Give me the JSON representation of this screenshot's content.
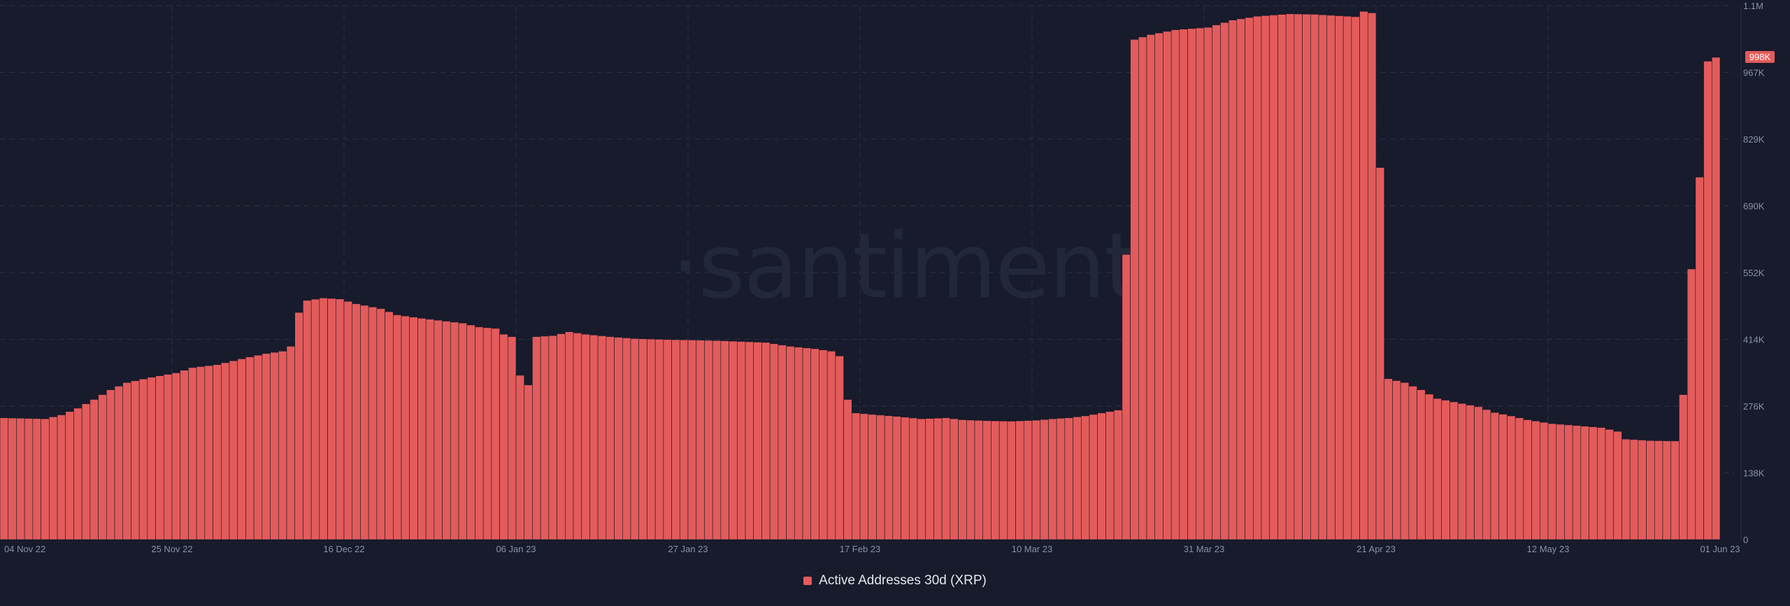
{
  "watermark": "·santiment",
  "legend": {
    "label": "Active Addresses 30d (XRP)"
  },
  "colors": {
    "background": "#171b2b",
    "bar": "#e35b5b",
    "bar_stroke": "#171b2b",
    "grid": "#2a3044",
    "axis_text": "#8b93a7",
    "last_value_badge": "#e35b5b"
  },
  "chart_data": {
    "type": "bar",
    "title": "",
    "series_name": "Active Addresses 30d (XRP)",
    "x_start": "2022-11-04",
    "x_end": "2023-06-01",
    "x_tick_labels": [
      "04 Nov 22",
      "25 Nov 22",
      "16 Dec 22",
      "06 Jan 23",
      "27 Jan 23",
      "17 Feb 23",
      "10 Mar 23",
      "31 Mar 23",
      "21 Apr 23",
      "12 May 23",
      "01 Jun 23"
    ],
    "y_tick_labels": [
      "0",
      "138K",
      "276K",
      "414K",
      "552K",
      "690K",
      "829K",
      "967K",
      "1.1M"
    ],
    "ylim": [
      0,
      1105000
    ],
    "y_axis_position": "right",
    "grid": true,
    "last_value_label": "998K",
    "last_value": 998000,
    "points": [
      [
        "2022-11-04",
        252000
      ],
      [
        "2022-11-09",
        250000
      ],
      [
        "2022-11-11",
        258000
      ],
      [
        "2022-11-13",
        272000
      ],
      [
        "2022-11-15",
        290000
      ],
      [
        "2022-11-17",
        310000
      ],
      [
        "2022-11-19",
        325000
      ],
      [
        "2022-11-22",
        336000
      ],
      [
        "2022-11-25",
        345000
      ],
      [
        "2022-11-27",
        356000
      ],
      [
        "2022-11-30",
        362000
      ],
      [
        "2022-12-02",
        370000
      ],
      [
        "2022-12-04",
        378000
      ],
      [
        "2022-12-06",
        385000
      ],
      [
        "2022-12-08",
        390000
      ],
      [
        "2022-12-09",
        400000
      ],
      [
        "2022-12-10",
        470000
      ],
      [
        "2022-12-11",
        495000
      ],
      [
        "2022-12-13",
        500000
      ],
      [
        "2022-12-15",
        498000
      ],
      [
        "2022-12-17",
        488000
      ],
      [
        "2022-12-20",
        478000
      ],
      [
        "2022-12-22",
        465000
      ],
      [
        "2022-12-25",
        458000
      ],
      [
        "2022-12-28",
        452000
      ],
      [
        "2022-12-30",
        448000
      ],
      [
        "2023-01-01",
        440000
      ],
      [
        "2023-01-03",
        437000
      ],
      [
        "2023-01-04",
        425000
      ],
      [
        "2023-01-05",
        420000
      ],
      [
        "2023-01-06",
        340000
      ],
      [
        "2023-01-07",
        320000
      ],
      [
        "2023-01-08",
        420000
      ],
      [
        "2023-01-10",
        422000
      ],
      [
        "2023-01-12",
        430000
      ],
      [
        "2023-01-14",
        425000
      ],
      [
        "2023-01-17",
        420000
      ],
      [
        "2023-01-20",
        416000
      ],
      [
        "2023-01-24",
        414000
      ],
      [
        "2023-01-27",
        413000
      ],
      [
        "2023-01-30",
        412000
      ],
      [
        "2023-02-02",
        410000
      ],
      [
        "2023-02-05",
        408000
      ],
      [
        "2023-02-08",
        400000
      ],
      [
        "2023-02-11",
        395000
      ],
      [
        "2023-02-13",
        390000
      ],
      [
        "2023-02-14",
        380000
      ],
      [
        "2023-02-15",
        290000
      ],
      [
        "2023-02-16",
        262000
      ],
      [
        "2023-02-18",
        259000
      ],
      [
        "2023-02-21",
        255000
      ],
      [
        "2023-02-24",
        250000
      ],
      [
        "2023-02-27",
        252000
      ],
      [
        "2023-03-01",
        248000
      ],
      [
        "2023-03-04",
        246000
      ],
      [
        "2023-03-07",
        245000
      ],
      [
        "2023-03-10",
        247000
      ],
      [
        "2023-03-12",
        250000
      ],
      [
        "2023-03-14",
        252000
      ],
      [
        "2023-03-16",
        256000
      ],
      [
        "2023-03-18",
        262000
      ],
      [
        "2023-03-20",
        268000
      ],
      [
        "2023-03-21",
        590000
      ],
      [
        "2023-03-22",
        1035000
      ],
      [
        "2023-03-24",
        1045000
      ],
      [
        "2023-03-27",
        1055000
      ],
      [
        "2023-03-31",
        1060000
      ],
      [
        "2023-04-03",
        1075000
      ],
      [
        "2023-04-06",
        1083000
      ],
      [
        "2023-04-10",
        1088000
      ],
      [
        "2023-04-13",
        1087000
      ],
      [
        "2023-04-16",
        1084000
      ],
      [
        "2023-04-18",
        1082000
      ],
      [
        "2023-04-19",
        1093000
      ],
      [
        "2023-04-20",
        1090000
      ],
      [
        "2023-04-21",
        770000
      ],
      [
        "2023-04-22",
        333000
      ],
      [
        "2023-04-24",
        325000
      ],
      [
        "2023-04-26",
        310000
      ],
      [
        "2023-04-28",
        292000
      ],
      [
        "2023-04-30",
        285000
      ],
      [
        "2023-05-03",
        275000
      ],
      [
        "2023-05-05",
        263000
      ],
      [
        "2023-05-07",
        256000
      ],
      [
        "2023-05-09",
        248000
      ],
      [
        "2023-05-12",
        240000
      ],
      [
        "2023-05-15",
        236000
      ],
      [
        "2023-05-18",
        232000
      ],
      [
        "2023-05-20",
        224000
      ],
      [
        "2023-05-21",
        208000
      ],
      [
        "2023-05-24",
        205000
      ],
      [
        "2023-05-27",
        204000
      ],
      [
        "2023-05-28",
        300000
      ],
      [
        "2023-05-29",
        560000
      ],
      [
        "2023-05-30",
        750000
      ],
      [
        "2023-05-31",
        990000
      ],
      [
        "2023-06-01",
        998000
      ]
    ]
  }
}
